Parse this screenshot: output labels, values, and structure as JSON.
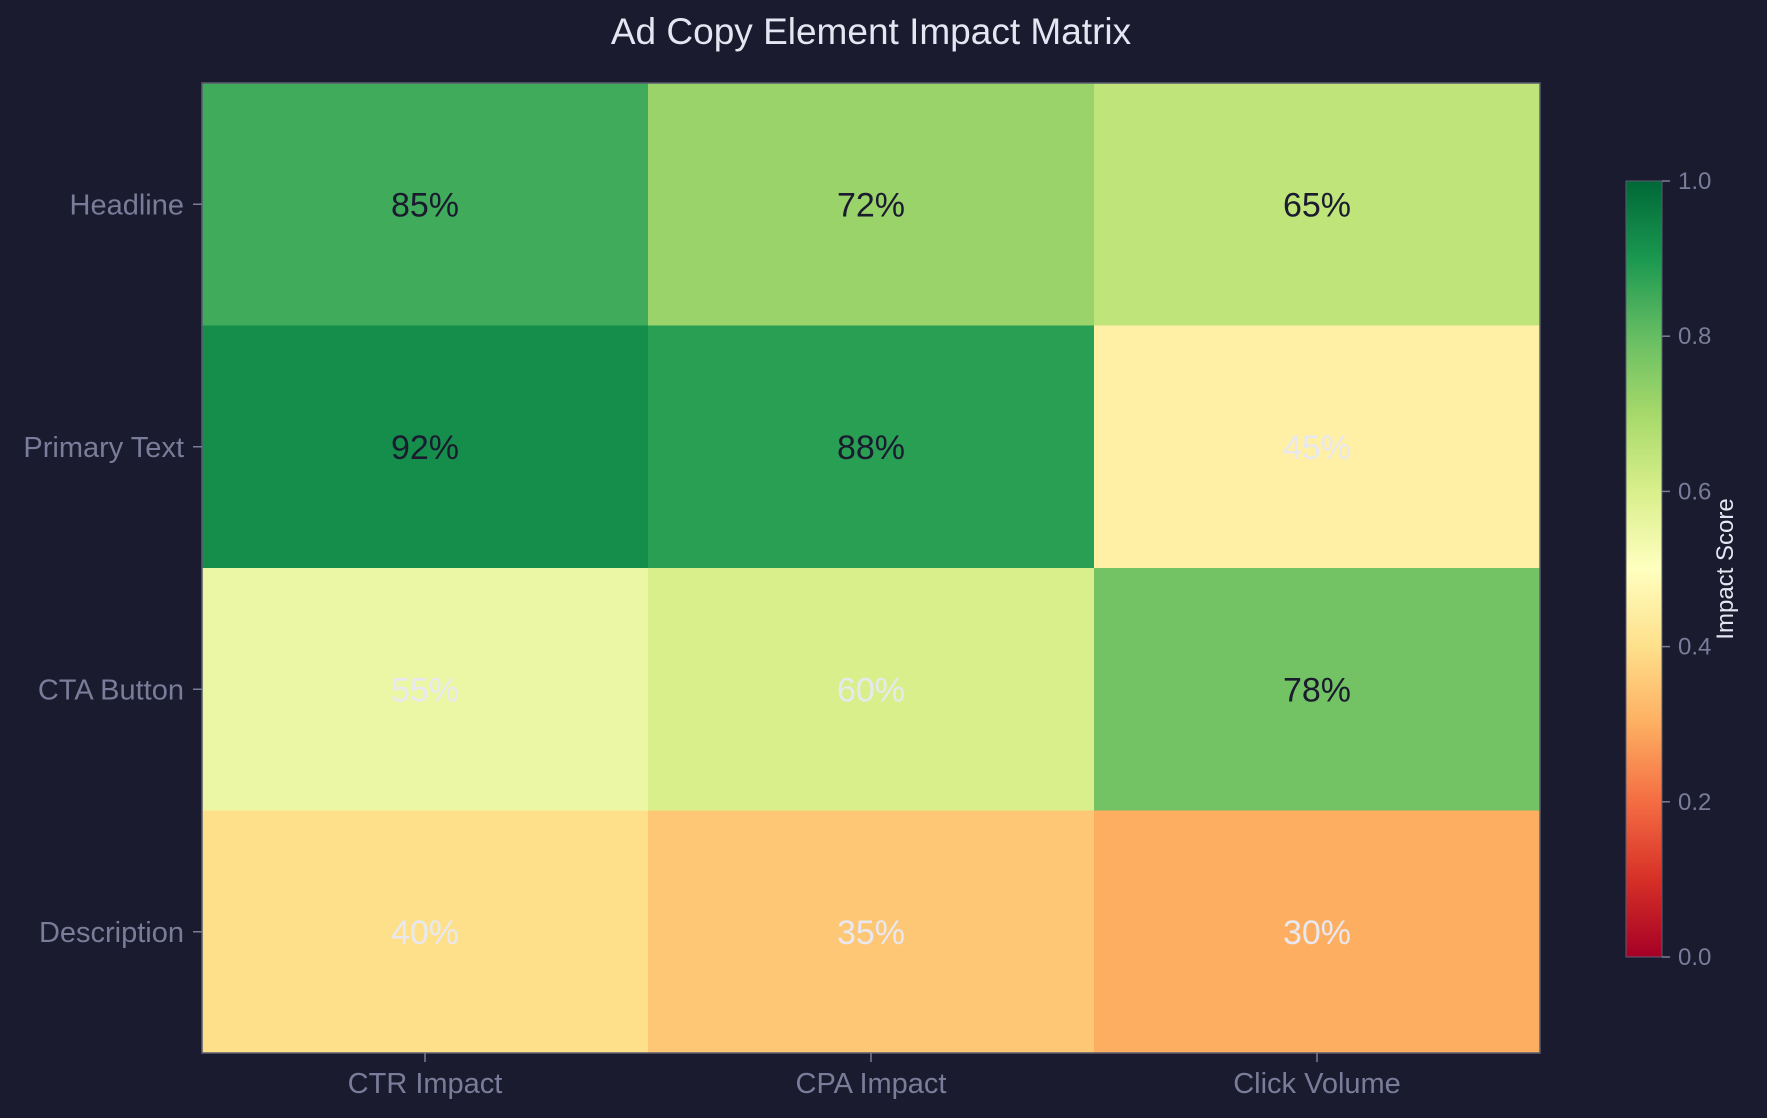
{
  "chart_data": {
    "type": "heatmap",
    "title": "Ad Copy Element Impact Matrix",
    "x_categories": [
      "CTR Impact",
      "CPA Impact",
      "Click Volume"
    ],
    "y_categories": [
      "Headline",
      "Primary Text",
      "CTA Button",
      "Description"
    ],
    "values": [
      [
        0.85,
        0.72,
        0.65
      ],
      [
        0.92,
        0.88,
        0.45
      ],
      [
        0.55,
        0.6,
        0.78
      ],
      [
        0.4,
        0.35,
        0.3
      ]
    ],
    "value_labels": [
      [
        "85%",
        "72%",
        "65%"
      ],
      [
        "92%",
        "88%",
        "45%"
      ],
      [
        "55%",
        "60%",
        "78%"
      ],
      [
        "40%",
        "35%",
        "30%"
      ]
    ],
    "colormap": "RdYlGn",
    "vmin": 0.0,
    "vmax": 1.0,
    "colorbar": {
      "label": "Impact Score",
      "ticks": [
        0.0,
        0.2,
        0.4,
        0.6,
        0.8,
        1.0
      ],
      "tick_labels": [
        "0.0",
        "0.2",
        "0.4",
        "0.6",
        "0.8",
        "1.0"
      ]
    },
    "label_colors": {
      "dark": "#1a1b2e",
      "light": "#e8e8f0"
    }
  },
  "colors": {
    "background": "#1a1b2e",
    "axis_frame": "#5a5c70",
    "tick_label": "#7a7c9a",
    "title": "#e4e6f2"
  }
}
